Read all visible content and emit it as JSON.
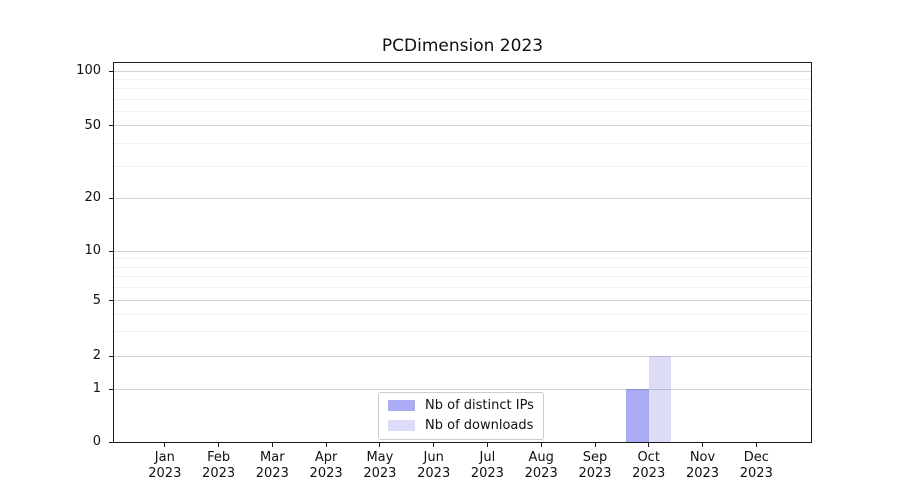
{
  "chart_data": {
    "type": "bar",
    "title": "PCDimension 2023",
    "categories": [
      "Jan",
      "Feb",
      "Mar",
      "Apr",
      "May",
      "Jun",
      "Jul",
      "Aug",
      "Sep",
      "Oct",
      "Nov",
      "Dec"
    ],
    "year_label": "2023",
    "series": [
      {
        "name": "Nb of distinct IPs",
        "color": "#aaaaf5",
        "values": [
          0,
          0,
          0,
          0,
          0,
          0,
          0,
          0,
          0,
          1,
          0,
          0
        ]
      },
      {
        "name": "Nb of downloads",
        "color": "#dcdcf9",
        "values": [
          0,
          0,
          0,
          0,
          0,
          0,
          0,
          0,
          0,
          2,
          0,
          0
        ]
      }
    ],
    "xlabel": "",
    "ylabel": "",
    "yscale": "symlog",
    "ylim": [
      0,
      112
    ],
    "yticks": [
      0,
      1,
      2,
      5,
      10,
      20,
      50,
      100
    ],
    "yticks_minor": [
      3,
      4,
      6,
      7,
      8,
      9,
      30,
      40,
      60,
      70,
      80,
      90
    ],
    "grid": "horizontal",
    "legend_position": "lower center"
  }
}
